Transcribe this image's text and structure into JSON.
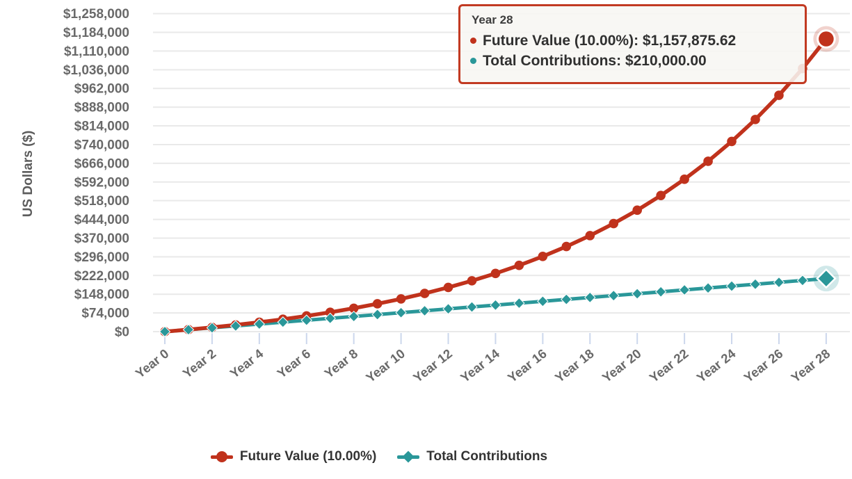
{
  "y_axis": {
    "title": "US Dollars ($)",
    "min": 0,
    "max": 1258000,
    "step": 74000,
    "tick_labels": [
      "$0",
      "$74,000",
      "$148,000",
      "$222,000",
      "$296,000",
      "$370,000",
      "$444,000",
      "$518,000",
      "$592,000",
      "$666,000",
      "$740,000",
      "$814,000",
      "$888,000",
      "$962,000",
      "$1,036,000",
      "$1,110,000",
      "$1,184,000",
      "$1,258,000"
    ]
  },
  "x_axis": {
    "tick_years": [
      0,
      2,
      4,
      6,
      8,
      10,
      12,
      14,
      16,
      18,
      20,
      22,
      24,
      26,
      28
    ],
    "tick_labels": [
      "Year 0",
      "Year 2",
      "Year 4",
      "Year 6",
      "Year 8",
      "Year 10",
      "Year 12",
      "Year 14",
      "Year 16",
      "Year 18",
      "Year 20",
      "Year 22",
      "Year 24",
      "Year 26",
      "Year 28"
    ]
  },
  "tooltip": {
    "title": "Year 28",
    "rows": [
      {
        "series": "Future Value (10.00%)",
        "text": "Future Value (10.00%): $1,157,875.62",
        "color": "#c0321c"
      },
      {
        "series": "Total Contributions",
        "text": "Total Contributions: $210,000.00",
        "color": "#2a9799"
      }
    ]
  },
  "legend": {
    "items": [
      {
        "label": "Future Value (10.00%)",
        "color": "#c0321c",
        "marker": "circle"
      },
      {
        "label": "Total Contributions",
        "color": "#2a9799",
        "marker": "diamond"
      }
    ]
  },
  "colors": {
    "future_value": "#c0321c",
    "contributions": "#2a9799",
    "gridline": "#e9e9e9",
    "axis_tick": "#ccd7ec",
    "axis_text": "#696969",
    "tooltip_border": "#c23a22"
  },
  "chart_data": {
    "type": "line",
    "title": "",
    "xlabel": "",
    "ylabel": "US Dollars ($)",
    "ylim": [
      0,
      1258000
    ],
    "ytick_step": 74000,
    "grid": "horizontal-only",
    "legend_position": "bottom",
    "highlighted_point": {
      "x_label": "Year 28",
      "year": 28
    },
    "x": [
      0,
      1,
      2,
      3,
      4,
      5,
      6,
      7,
      8,
      9,
      10,
      11,
      12,
      13,
      14,
      15,
      16,
      17,
      18,
      19,
      20,
      21,
      22,
      23,
      24,
      25,
      26,
      27,
      28
    ],
    "series": [
      {
        "name": "Future Value (10.00%)",
        "color": "#c0321c",
        "marker": "circle",
        "final_value_text": "$1,157,875.62",
        "values": [
          0,
          7948,
          16729,
          26429,
          37145,
          48982,
          62059,
          76505,
          92465,
          110095,
          129572,
          151090,
          174860,
          201117,
          230123,
          262166,
          297565,
          336670,
          379871,
          427596,
          480317,
          538558,
          602896,
          673971,
          752487,
          839225,
          935045,
          1040898,
          1157875.62
        ]
      },
      {
        "name": "Total Contributions",
        "color": "#2a9799",
        "marker": "diamond",
        "final_value_text": "$210,000.00",
        "values": [
          0,
          7500,
          15000,
          22500,
          30000,
          37500,
          45000,
          52500,
          60000,
          67500,
          75000,
          82500,
          90000,
          97500,
          105000,
          112500,
          120000,
          127500,
          135000,
          142500,
          150000,
          157500,
          165000,
          172500,
          180000,
          187500,
          195000,
          202500,
          210000
        ]
      }
    ]
  }
}
